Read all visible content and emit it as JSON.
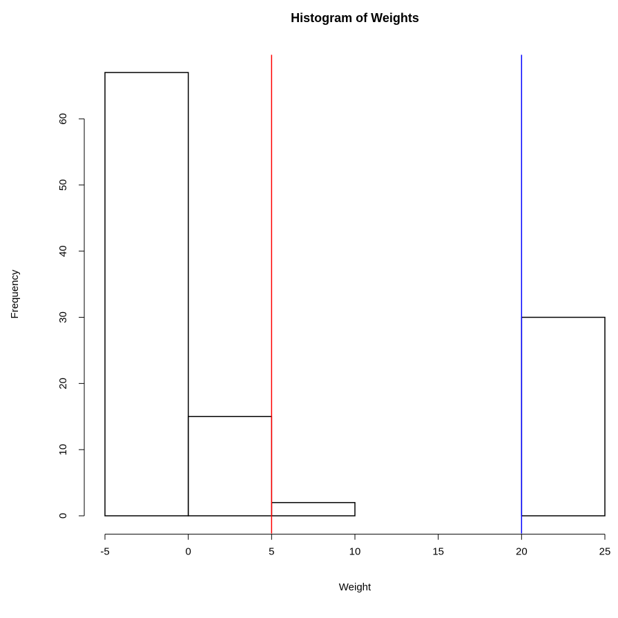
{
  "chart_data": {
    "type": "histogram",
    "title": "Histogram of Weights",
    "x_label": "Weight",
    "y_label": "Frequency",
    "bins": [
      -5,
      0,
      5,
      10,
      15,
      20,
      25
    ],
    "counts": [
      67,
      15,
      2,
      0,
      0,
      30
    ],
    "xlim": [
      -5,
      25
    ],
    "ylim": [
      0,
      67
    ],
    "xticks": [
      -5,
      0,
      5,
      10,
      15,
      20,
      25
    ],
    "yticks": [
      0,
      10,
      20,
      30,
      40,
      50,
      60
    ],
    "vlines": [
      {
        "value": 5,
        "color": "red"
      },
      {
        "value": 20,
        "color": "blue"
      }
    ]
  }
}
